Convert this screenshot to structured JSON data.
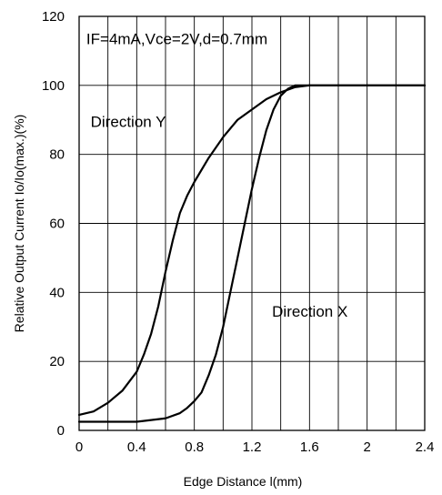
{
  "chart_data": {
    "type": "line",
    "title": "",
    "xlabel": "Edge Distance l(mm)",
    "ylabel": "Relative Output Current Io/Io(max.)(%)",
    "xlim": [
      0,
      2.4
    ],
    "ylim": [
      0,
      120
    ],
    "x_ticks": [
      0,
      0.4,
      0.8,
      1.2,
      1.6,
      2,
      2.4
    ],
    "x_tick_labels": [
      "0",
      "0.4",
      "0.8",
      "1.2",
      "1.6",
      "2",
      "2.4"
    ],
    "y_ticks": [
      0,
      20,
      40,
      60,
      80,
      100,
      120
    ],
    "y_tick_labels": [
      "0",
      "20",
      "40",
      "60",
      "80",
      "100",
      "120"
    ],
    "x_grid": [
      0.2,
      0.4,
      0.6,
      0.8,
      1.0,
      1.2,
      1.4,
      1.6,
      1.8,
      2.0,
      2.2
    ],
    "y_grid": [
      20,
      40,
      60,
      80,
      100
    ],
    "grid": true,
    "legend": "none",
    "line_color": "#000000",
    "series": [
      {
        "name": "Direction Y",
        "x": [
          0,
          0.1,
          0.2,
          0.3,
          0.4,
          0.45,
          0.5,
          0.55,
          0.6,
          0.65,
          0.7,
          0.75,
          0.8,
          0.9,
          1.0,
          1.1,
          1.2,
          1.3,
          1.4,
          1.5,
          1.6,
          2.0,
          2.4
        ],
        "y": [
          4.5,
          5.5,
          8,
          11.5,
          17,
          22,
          28,
          36,
          46,
          55,
          63,
          68,
          72,
          79,
          85,
          90,
          93,
          96,
          98,
          99.5,
          100,
          100,
          100
        ]
      },
      {
        "name": "Direction X",
        "x": [
          0,
          0.2,
          0.4,
          0.5,
          0.6,
          0.7,
          0.75,
          0.8,
          0.85,
          0.9,
          0.95,
          1.0,
          1.05,
          1.1,
          1.15,
          1.2,
          1.25,
          1.3,
          1.35,
          1.4,
          1.45,
          1.5,
          1.6,
          2.0,
          2.4
        ],
        "y": [
          2.5,
          2.5,
          2.5,
          3,
          3.5,
          5,
          6.5,
          8.5,
          11,
          16,
          22,
          30,
          40,
          50,
          60,
          70,
          79,
          87,
          93,
          97,
          99,
          100,
          100,
          100,
          100
        ]
      }
    ],
    "annotations": [
      {
        "text": "IF=4mA,Vce=2V,d=0.7mm",
        "x": 0.05,
        "y": 112
      },
      {
        "text": "Direction Y",
        "x": 0.08,
        "y": 88
      },
      {
        "text": "Direction X",
        "x": 1.34,
        "y": 33
      }
    ]
  }
}
